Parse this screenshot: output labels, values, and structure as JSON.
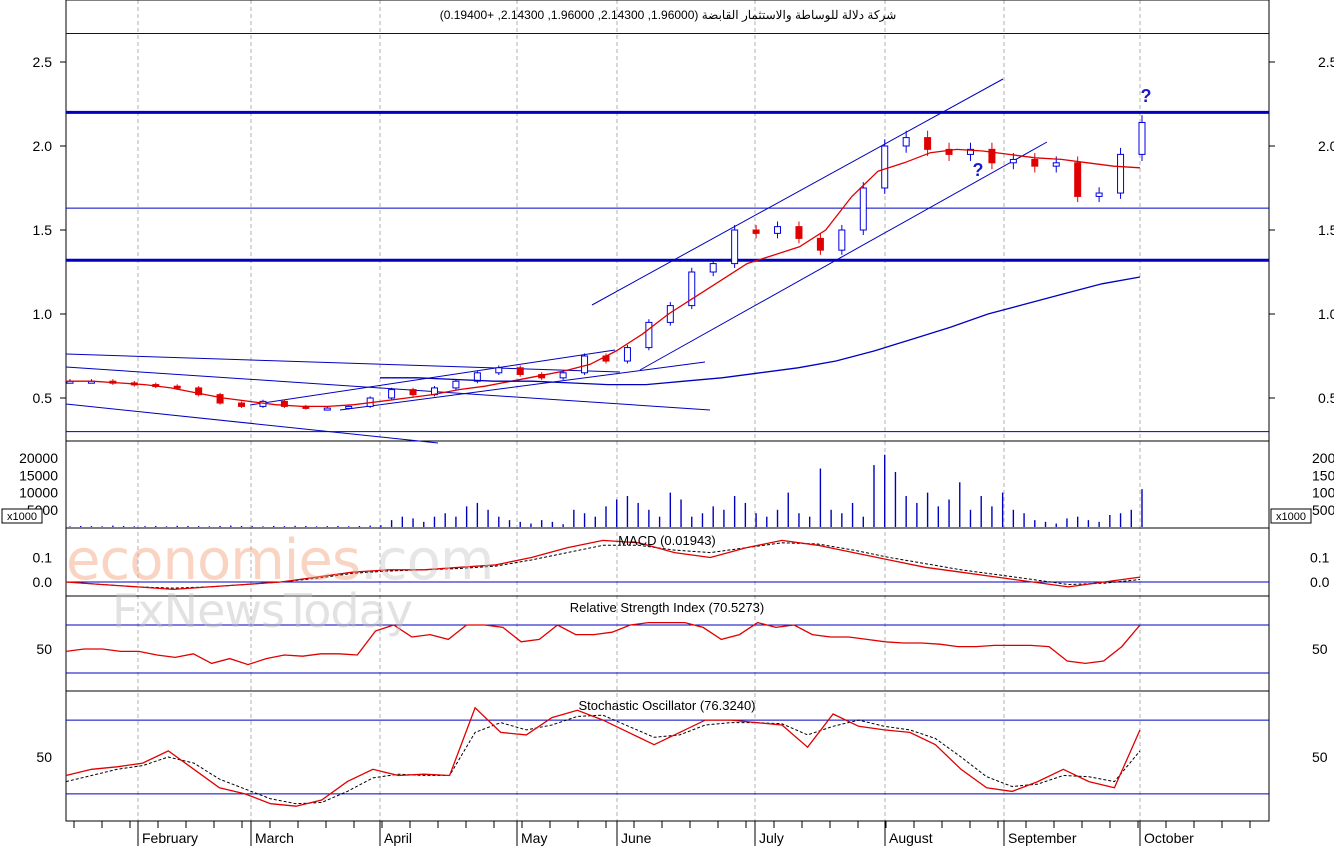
{
  "title": "شركة دلالة للوساطة والاستثمار القابضة (1.96000, 2.14300, 1.96000, 2.14300, +0.19400)",
  "watermark": {
    "part1": "economies",
    "part2": ".com",
    "line2": "FxNewsToday"
  },
  "colors": {
    "up": "#0000e0",
    "down": "#e00000",
    "line": "#0000c0",
    "ma": "#e00000",
    "signal": "#000000",
    "grid": "#b0b0b0"
  },
  "chart_data": [
    {
      "panel": "price",
      "type": "candlestick",
      "y_ticks": [
        "0.5",
        "1.0",
        "1.5",
        "2.0",
        "2.5"
      ],
      "ylim": [
        0.3,
        2.7
      ],
      "x_labels": [
        "February",
        "March",
        "April",
        "May",
        "June",
        "July",
        "August",
        "September",
        "October"
      ],
      "horizontal_levels": [
        2.67,
        2.2,
        1.63,
        1.32,
        0.3
      ],
      "annotations": [
        "?",
        "?"
      ],
      "series": [
        {
          "kind": "close_approx",
          "values": [
            0.6,
            0.6,
            0.59,
            0.58,
            0.57,
            0.56,
            0.52,
            0.47,
            0.45,
            0.48,
            0.45,
            0.44,
            0.44,
            0.45,
            0.5,
            0.55,
            0.52,
            0.56,
            0.6,
            0.65,
            0.68,
            0.64,
            0.62,
            0.65,
            0.75,
            0.72,
            0.8,
            0.95,
            1.05,
            1.25,
            1.3,
            1.5,
            1.48,
            1.52,
            1.45,
            1.38,
            1.5,
            1.75,
            2.0,
            2.05,
            1.98,
            1.95,
            1.98,
            1.9,
            1.92,
            1.88,
            1.9,
            1.7,
            1.72,
            1.95,
            2.14
          ]
        },
        {
          "kind": "moving_average_red",
          "values": [
            0.6,
            0.6,
            0.59,
            0.58,
            0.56,
            0.53,
            0.5,
            0.48,
            0.46,
            0.45,
            0.45,
            0.46,
            0.48,
            0.5,
            0.52,
            0.55,
            0.57,
            0.6,
            0.63,
            0.66,
            0.7,
            0.78,
            0.88,
            1.0,
            1.1,
            1.2,
            1.3,
            1.35,
            1.4,
            1.5,
            1.7,
            1.85,
            1.9,
            1.96,
            1.98,
            1.97,
            1.95,
            1.93,
            1.92,
            1.9,
            1.88,
            1.87
          ]
        },
        {
          "kind": "moving_average_blue",
          "values": [
            0.62,
            0.62,
            0.61,
            0.6,
            0.6,
            0.59,
            0.58,
            0.58,
            0.6,
            0.62,
            0.65,
            0.68,
            0.72,
            0.78,
            0.85,
            0.92,
            1.0,
            1.06,
            1.12,
            1.18,
            1.22
          ]
        }
      ]
    },
    {
      "panel": "volume",
      "type": "bar",
      "y_ticks": [
        "5000",
        "10000",
        "15000",
        "20000"
      ],
      "multiplier_label": "x1000",
      "ylim": [
        0,
        22000
      ],
      "values": [
        200,
        300,
        250,
        200,
        400,
        300,
        200,
        250,
        300,
        200,
        350,
        300,
        250,
        200,
        300,
        400,
        300,
        250,
        200,
        300,
        250,
        350,
        300,
        200,
        250,
        300,
        200,
        300,
        400,
        500,
        2000,
        3000,
        2500,
        1500,
        3000,
        4000,
        3000,
        6000,
        7000,
        5000,
        3000,
        2000,
        1500,
        1000,
        2000,
        1500,
        800,
        5000,
        4000,
        3000,
        6000,
        8000,
        9000,
        7000,
        5000,
        3000,
        10000,
        8000,
        3000,
        4000,
        6000,
        5000,
        9000,
        7000,
        4000,
        3000,
        5000,
        10000,
        4000,
        3000,
        17000,
        5000,
        4000,
        7000,
        3000,
        18000,
        21000,
        16000,
        9000,
        7000,
        10000,
        6000,
        8000,
        13000,
        5000,
        9000,
        6000,
        10000,
        5000,
        4000,
        2000,
        1500,
        1000,
        2500,
        3000,
        2000,
        1500,
        3500,
        4000,
        5000,
        11000
      ]
    },
    {
      "panel": "macd",
      "type": "line",
      "title": "MACD (0.01943)",
      "y_ticks": [
        "0.0",
        "0.1"
      ],
      "ylim": [
        -0.04,
        0.2
      ],
      "series": [
        {
          "name": "macd",
          "values": [
            0.0,
            -0.01,
            -0.02,
            -0.03,
            -0.02,
            -0.01,
            0.0,
            0.02,
            0.04,
            0.05,
            0.05,
            0.06,
            0.07,
            0.1,
            0.14,
            0.17,
            0.16,
            0.12,
            0.1,
            0.14,
            0.17,
            0.15,
            0.12,
            0.09,
            0.06,
            0.04,
            0.02,
            0.0,
            -0.02,
            0.0,
            0.02
          ]
        },
        {
          "name": "signal",
          "values": [
            0.0,
            -0.01,
            -0.02,
            -0.025,
            -0.02,
            -0.01,
            0.0,
            0.015,
            0.035,
            0.045,
            0.05,
            0.055,
            0.065,
            0.09,
            0.12,
            0.15,
            0.15,
            0.13,
            0.12,
            0.14,
            0.16,
            0.155,
            0.13,
            0.1,
            0.075,
            0.05,
            0.03,
            0.01,
            -0.01,
            -0.005,
            0.01
          ]
        }
      ]
    },
    {
      "panel": "rsi",
      "type": "line",
      "title": "Relative Strength Index (70.5273)",
      "y_ticks": [
        "50"
      ],
      "ylim": [
        20,
        90
      ],
      "levels": [
        70,
        30
      ],
      "values": [
        48,
        50,
        50,
        48,
        48,
        45,
        43,
        46,
        38,
        42,
        37,
        42,
        45,
        44,
        46,
        46,
        45,
        65,
        70,
        60,
        62,
        58,
        70,
        70,
        68,
        56,
        58,
        70,
        62,
        62,
        64,
        70,
        72,
        72,
        72,
        68,
        58,
        62,
        72,
        68,
        70,
        62,
        60,
        60,
        58,
        56,
        55,
        55,
        54,
        52,
        52,
        53,
        53,
        53,
        52,
        40,
        38,
        40,
        52,
        70
      ]
    },
    {
      "panel": "stochastic",
      "type": "line",
      "title": "Stochastic Oscillator (76.3240)",
      "y_ticks": [
        "50"
      ],
      "ylim": [
        0,
        100
      ],
      "levels": [
        80,
        20
      ],
      "series": [
        {
          "name": "%K",
          "values": [
            35,
            40,
            42,
            45,
            55,
            40,
            25,
            20,
            12,
            10,
            15,
            30,
            40,
            35,
            36,
            35,
            90,
            70,
            68,
            82,
            88,
            80,
            70,
            60,
            70,
            80,
            80,
            78,
            76,
            58,
            85,
            75,
            72,
            70,
            60,
            40,
            25,
            22,
            30,
            40,
            30,
            25,
            72
          ]
        },
        {
          "name": "%D",
          "values": [
            30,
            35,
            40,
            43,
            50,
            45,
            32,
            24,
            16,
            12,
            13,
            22,
            33,
            36,
            35,
            35,
            70,
            78,
            72,
            76,
            83,
            84,
            75,
            66,
            68,
            76,
            78,
            78,
            77,
            68,
            75,
            80,
            75,
            72,
            65,
            50,
            34,
            26,
            28,
            35,
            34,
            30,
            55
          ]
        }
      ]
    }
  ]
}
